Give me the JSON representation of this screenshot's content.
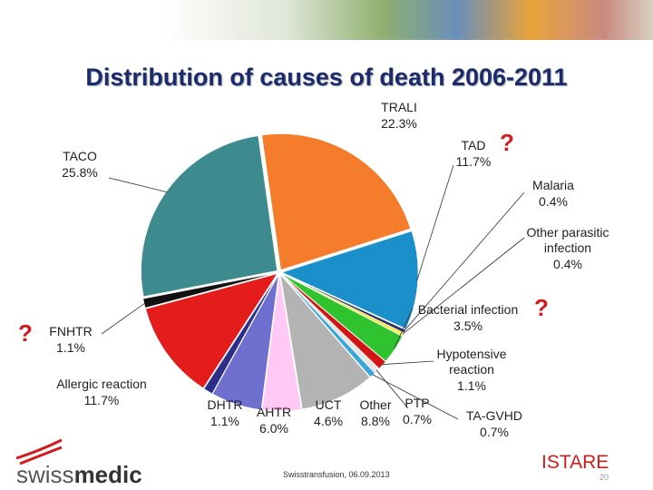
{
  "chart_data": {
    "type": "pie",
    "title": "Distribution of causes of death  2006-2011",
    "categories": [
      "TRALI",
      "TAD",
      "Malaria",
      "Other parasitic infection",
      "Bacterial infection",
      "Hypotensive reaction",
      "PTP",
      "TA-GVHD",
      "Other",
      "UCT",
      "AHTR",
      "DHTR",
      "Allergic reaction",
      "FNHTR",
      "TACO"
    ],
    "values": [
      22.3,
      11.7,
      0.4,
      0.4,
      3.5,
      1.1,
      0.7,
      0.7,
      8.8,
      4.6,
      6.0,
      1.1,
      11.7,
      1.1,
      25.8
    ],
    "value_labels": [
      "22.3%",
      "11.7%",
      "0.4%",
      "0.4%",
      "3.5%",
      "1.1%",
      "0.7%",
      "0.7%",
      "8.8%",
      "4.6%",
      "6.0%",
      "1.1%",
      "11.7%",
      "1.1%",
      "25.8%"
    ],
    "colors": [
      "#f47c2a",
      "#1a8fc9",
      "#2b2f6b",
      "#f5e943",
      "#2fc42f",
      "#d41515",
      "#e6e6e6",
      "#3aa6d9",
      "#b3b3b3",
      "#ffc8f5",
      "#6f6fcf",
      "#2b2f8a",
      "#e41c1c",
      "#111111",
      "#3d8a8f"
    ],
    "annotations": [
      "?",
      "?",
      "?"
    ]
  },
  "footer": {
    "logo_light": "swiss",
    "logo_bold": "medic",
    "event": "Swisstransfusion, 06.09.2013",
    "brand": "ISTARE",
    "page": "20"
  }
}
